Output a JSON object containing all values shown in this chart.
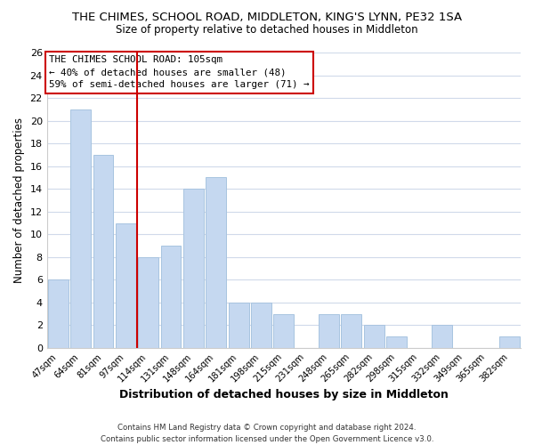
{
  "title": "THE CHIMES, SCHOOL ROAD, MIDDLETON, KING'S LYNN, PE32 1SA",
  "subtitle": "Size of property relative to detached houses in Middleton",
  "xlabel": "Distribution of detached houses by size in Middleton",
  "ylabel": "Number of detached properties",
  "bar_color": "#c5d8f0",
  "bar_edge_color": "#a8c4e0",
  "categories": [
    "47sqm",
    "64sqm",
    "81sqm",
    "97sqm",
    "114sqm",
    "131sqm",
    "148sqm",
    "164sqm",
    "181sqm",
    "198sqm",
    "215sqm",
    "231sqm",
    "248sqm",
    "265sqm",
    "282sqm",
    "298sqm",
    "315sqm",
    "332sqm",
    "349sqm",
    "365sqm",
    "382sqm"
  ],
  "values": [
    6,
    21,
    17,
    11,
    8,
    9,
    14,
    15,
    4,
    4,
    3,
    0,
    3,
    3,
    2,
    1,
    0,
    2,
    0,
    0,
    1
  ],
  "ylim": [
    0,
    26
  ],
  "yticks": [
    0,
    2,
    4,
    6,
    8,
    10,
    12,
    14,
    16,
    18,
    20,
    22,
    24,
    26
  ],
  "vline_x": 3.5,
  "vline_color": "#cc0000",
  "annotation_line1": "THE CHIMES SCHOOL ROAD: 105sqm",
  "annotation_line2": "← 40% of detached houses are smaller (48)",
  "annotation_line3": "59% of semi-detached houses are larger (71) →",
  "footer_line1": "Contains HM Land Registry data © Crown copyright and database right 2024.",
  "footer_line2": "Contains public sector information licensed under the Open Government Licence v3.0.",
  "background_color": "#ffffff",
  "grid_color": "#d0daea"
}
